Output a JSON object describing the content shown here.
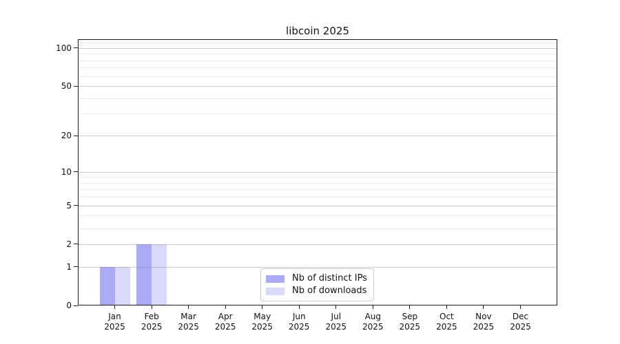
{
  "chart_data": {
    "type": "bar",
    "title": "libcoin 2025",
    "categories": [
      {
        "label": "Jan",
        "year": "2025"
      },
      {
        "label": "Feb",
        "year": "2025"
      },
      {
        "label": "Mar",
        "year": "2025"
      },
      {
        "label": "Apr",
        "year": "2025"
      },
      {
        "label": "May",
        "year": "2025"
      },
      {
        "label": "Jun",
        "year": "2025"
      },
      {
        "label": "Jul",
        "year": "2025"
      },
      {
        "label": "Aug",
        "year": "2025"
      },
      {
        "label": "Sep",
        "year": "2025"
      },
      {
        "label": "Oct",
        "year": "2025"
      },
      {
        "label": "Nov",
        "year": "2025"
      },
      {
        "label": "Dec",
        "year": "2025"
      }
    ],
    "series": [
      {
        "name": "Nb of distinct IPs",
        "color": "#aaaaf5",
        "values": [
          1,
          2,
          0,
          0,
          0,
          0,
          0,
          0,
          0,
          0,
          0,
          0
        ]
      },
      {
        "name": "Nb of downloads",
        "color": "#d9d9fa",
        "values": [
          1,
          2,
          0,
          0,
          0,
          0,
          0,
          0,
          0,
          0,
          0,
          0
        ]
      }
    ],
    "yaxis": {
      "scale": "log1p",
      "top_value": 117,
      "major_ticks": [
        {
          "value": 100,
          "label": "100"
        },
        {
          "value": 50,
          "label": "50"
        },
        {
          "value": 20,
          "label": "20"
        },
        {
          "value": 10,
          "label": "10"
        },
        {
          "value": 5,
          "label": "5"
        },
        {
          "value": 2,
          "label": "2"
        },
        {
          "value": 1,
          "label": "1"
        },
        {
          "value": 0,
          "label": "0"
        }
      ],
      "minor_ticks": [
        110,
        90,
        80,
        70,
        60,
        40,
        30,
        9,
        8,
        7,
        6,
        4,
        3
      ]
    },
    "legend": {
      "position": "lower center"
    },
    "grid": true,
    "xlabel": "",
    "ylabel": ""
  }
}
